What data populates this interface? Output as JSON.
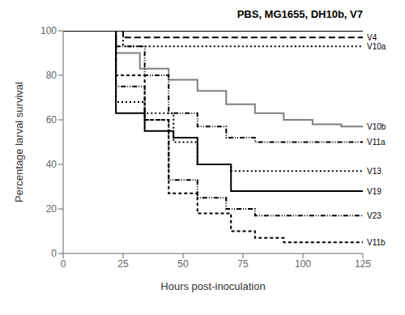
{
  "chart_data": {
    "type": "line",
    "title": "PBS, MG1655, DH10b, V7",
    "x_label": "Hours post-inoculation",
    "y_label": "Percentage larval survival",
    "xlim": [
      0,
      125
    ],
    "ylim": [
      0,
      100
    ],
    "xticks": [
      0,
      25,
      50,
      75,
      100,
      125
    ],
    "yticks": [
      0,
      20,
      40,
      60,
      80,
      100
    ],
    "grid": false,
    "series": [
      {
        "color": "#000000",
        "line_style": "solid",
        "x": [
          0,
          125
        ],
        "values": [
          100,
          100
        ]
      },
      {
        "name": "V4",
        "color": "#000000",
        "line_style": "long_dash",
        "x": [
          0,
          25,
          25,
          48,
          48,
          125
        ],
        "values": [
          100,
          100,
          97,
          97,
          97,
          97
        ]
      },
      {
        "name": "V10a",
        "color": "#000000",
        "line_style": "dotted",
        "x": [
          0,
          25,
          25,
          125
        ],
        "values": [
          100,
          100,
          93,
          93
        ]
      },
      {
        "name": "V10b",
        "color": "#808080",
        "line_style": "solid",
        "x": [
          0,
          22,
          22,
          32,
          32,
          44,
          44,
          56,
          56,
          68,
          68,
          80,
          80,
          92,
          92,
          104,
          104,
          116,
          116,
          125
        ],
        "values": [
          100,
          100,
          90,
          90,
          83,
          83,
          78,
          78,
          73,
          73,
          67,
          67,
          63,
          63,
          60,
          60,
          58,
          58,
          57,
          57
        ]
      },
      {
        "name": "V11a",
        "color": "#000000",
        "line_style": "dashdotdot",
        "x": [
          0,
          22,
          22,
          34,
          34,
          44,
          44,
          56,
          56,
          68,
          68,
          80,
          80,
          125
        ],
        "values": [
          100,
          100,
          93,
          93,
          80,
          80,
          63,
          63,
          57,
          57,
          52,
          52,
          50,
          50
        ]
      },
      {
        "name": "V13",
        "color": "#000000",
        "line_style": "dotted",
        "x": [
          0,
          22,
          22,
          34,
          34,
          46,
          46,
          56,
          56,
          70,
          70,
          125
        ],
        "values": [
          100,
          100,
          68,
          68,
          63,
          63,
          50,
          50,
          40,
          40,
          37,
          37
        ]
      },
      {
        "name": "V19",
        "color": "#000000",
        "line_style": "solid",
        "x": [
          0,
          22,
          22,
          34,
          34,
          46,
          46,
          56,
          56,
          70,
          70,
          125
        ],
        "values": [
          100,
          100,
          63,
          63,
          55,
          55,
          52,
          52,
          40,
          40,
          28,
          28
        ]
      },
      {
        "name": "V23",
        "color": "#000000",
        "line_style": "dashdotdot",
        "x": [
          0,
          22,
          22,
          34,
          34,
          44,
          44,
          56,
          56,
          68,
          68,
          80,
          80,
          125
        ],
        "values": [
          100,
          100,
          75,
          75,
          60,
          60,
          33,
          33,
          25,
          25,
          20,
          20,
          17,
          17
        ]
      },
      {
        "name": "V11b",
        "color": "#000000",
        "line_style": "dashed",
        "x": [
          0,
          22,
          22,
          34,
          34,
          44,
          44,
          56,
          56,
          70,
          70,
          80,
          80,
          92,
          92,
          125
        ],
        "values": [
          100,
          100,
          80,
          80,
          60,
          60,
          27,
          27,
          18,
          18,
          10,
          10,
          7,
          7,
          5,
          5
        ]
      }
    ],
    "annotations": [
      {
        "text": "V4",
        "x": 125,
        "y": 97
      },
      {
        "text": "V10a",
        "x": 125,
        "y": 93
      },
      {
        "text": "V10b",
        "x": 125,
        "y": 57
      },
      {
        "text": "V11a",
        "x": 125,
        "y": 50
      },
      {
        "text": "V13",
        "x": 125,
        "y": 37
      },
      {
        "text": "V19",
        "x": 125,
        "y": 28
      },
      {
        "text": "V23",
        "x": 125,
        "y": 17
      },
      {
        "text": "V11b",
        "x": 125,
        "y": 5
      }
    ]
  }
}
